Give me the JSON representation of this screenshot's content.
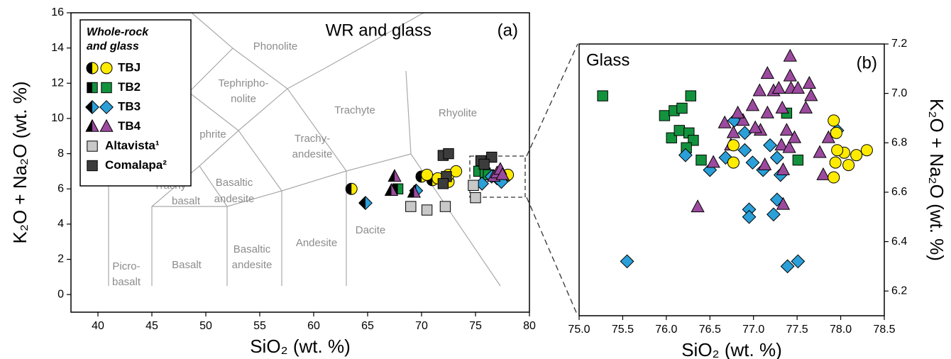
{
  "chart_data": [
    {
      "type": "scatter",
      "title": "WR and glass",
      "panel_label": "(a)",
      "x_label": "SiO₂ (wt. %)",
      "y_label": "K₂O + Na₂O (wt. %)",
      "xlim": [
        37.5,
        80
      ],
      "ylim": [
        -1,
        16
      ],
      "xticks": [
        40,
        45,
        50,
        55,
        60,
        65,
        70,
        75,
        80
      ],
      "yticks": [
        0,
        2,
        4,
        6,
        8,
        10,
        12,
        14,
        16
      ],
      "legend_title": [
        "Whole-rock",
        "and glass"
      ],
      "annotations": [
        "Phonolite",
        "Tephripho-",
        "nolite",
        "phrite",
        "Trachyte",
        "Rhyolite",
        "Trachy-",
        "andesite",
        "Basaltic",
        "andesite",
        "Trachy-",
        "basalt",
        "Picro-",
        "basalt",
        "Basalt",
        "Basaltic",
        "andesite",
        "Andesite",
        "Dacite"
      ],
      "series": [
        {
          "name": "TBJ",
          "color": "#ffeb00",
          "marker": "circle",
          "whole_rock": {
            "x": [
              63.5,
              70.0,
              71.0,
              72.5
            ],
            "y": [
              6.0,
              6.7,
              6.5,
              6.4
            ]
          },
          "glass": {
            "x": [
              70.5,
              71.5,
              72.5,
              73.2,
              77.3,
              77.8,
              78.0
            ],
            "y": [
              6.8,
              6.6,
              6.8,
              7.0,
              6.8,
              6.7,
              6.8
            ]
          }
        },
        {
          "name": "TB2",
          "color": "#13923e",
          "marker": "square",
          "whole_rock": {
            "x": [
              67.8
            ],
            "y": [
              6.0
            ]
          },
          "glass": {
            "x": [
              75.3,
              75.9,
              76.2
            ],
            "y": [
              7.0,
              6.9,
              6.8
            ]
          }
        },
        {
          "name": "TB3",
          "color": "#2a9fd8",
          "marker": "diamond",
          "whole_rock": {
            "x": [
              64.8,
              69.5
            ],
            "y": [
              5.2,
              5.9
            ]
          },
          "glass": {
            "x": [
              75.6,
              76.5,
              77.0,
              77.4
            ],
            "y": [
              6.3,
              6.7,
              6.6,
              6.4
            ]
          }
        },
        {
          "name": "TB4",
          "color": "#9b4a9e",
          "marker": "triangle",
          "whole_rock": {
            "x": [
              67.2,
              67.5,
              69.3
            ],
            "y": [
              5.9,
              6.7,
              5.8
            ]
          },
          "glass": {
            "x": [
              76.7,
              77.0,
              77.3,
              77.5
            ],
            "y": [
              6.7,
              6.9,
              7.1,
              6.8
            ]
          }
        },
        {
          "name": "Altavista¹",
          "color": "#c8c8c8",
          "marker": "square",
          "x": [
            69.0,
            70.5,
            72.2,
            74.8,
            75.0
          ],
          "y": [
            5.0,
            4.8,
            5.0,
            6.2,
            5.5
          ]
        },
        {
          "name": "Comalapa²",
          "color": "#3c3c3c",
          "marker": "square",
          "x": [
            72.0,
            72.5,
            72.3,
            75.5,
            76.5,
            75.8,
            72.0
          ],
          "y": [
            7.9,
            8.0,
            6.7,
            7.6,
            7.8,
            7.4,
            6.3
          ]
        }
      ]
    },
    {
      "type": "scatter",
      "title": "Glass",
      "panel_label": "(b)",
      "x_label": "SiO₂ (wt. %)",
      "y_label": "K₂O + Na₂O (wt. %)",
      "xlim": [
        75,
        78.5
      ],
      "ylim": [
        6.1,
        7.2
      ],
      "xticks": [
        {
          "value": 75,
          "label": "75.0"
        },
        75.5,
        {
          "value": 76,
          "label": "76.0"
        },
        76.5,
        {
          "value": 77,
          "label": "77.0"
        },
        77.5,
        {
          "value": 78,
          "label": "78.0"
        },
        78.5
      ],
      "yticks": [
        6.2,
        6.4,
        6.6,
        6.8,
        {
          "value": 7,
          "label": "7.0"
        },
        7.2
      ],
      "series": [
        {
          "color": "#13923e",
          "marker": "square",
          "x": [
            75.27,
            75.98,
            76.09,
            76.18,
            76.28,
            76.06,
            76.15,
            76.26,
            76.31,
            76.23,
            76.4,
            77.38,
            77.51
          ],
          "y": [
            6.99,
            6.91,
            6.93,
            6.94,
            6.99,
            6.82,
            6.85,
            6.84,
            6.81,
            6.78,
            6.73,
            6.92,
            6.73
          ]
        },
        {
          "color": "#2a9fd8",
          "marker": "diamond",
          "x": [
            75.55,
            76.22,
            76.5,
            76.68,
            76.9,
            76.99,
            77.11,
            77.19,
            77.27,
            77.31,
            76.78,
            76.9,
            76.95,
            76.95,
            77.23,
            77.27,
            77.39,
            77.51,
            77.96
          ],
          "y": [
            6.32,
            6.75,
            6.69,
            6.74,
            6.77,
            6.72,
            6.69,
            6.79,
            6.74,
            6.67,
            6.89,
            6.84,
            6.53,
            6.5,
            6.51,
            6.57,
            6.3,
            6.32,
            6.85
          ]
        },
        {
          "color": "#9b4a9e",
          "marker": "triangle",
          "x": [
            76.67,
            76.54,
            76.77,
            76.88,
            76.82,
            76.99,
            77.07,
            77.16,
            77.23,
            77.29,
            77.33,
            77.43,
            77.51,
            77.64,
            77.66,
            77.6,
            77.42,
            77.42,
            77.38,
            77.32,
            77.41,
            77.47,
            77.16,
            77.08,
            77.13,
            77.34,
            77.34,
            77.76,
            77.86,
            77.8,
            77.02,
            76.36,
            76.74
          ],
          "y": [
            6.88,
            6.72,
            6.84,
            6.89,
            6.92,
            6.95,
            7.01,
            7.08,
            7.01,
            7.02,
            6.94,
            7.02,
            7.02,
            7.04,
            6.99,
            6.94,
            7.07,
            7.15,
            6.85,
            6.79,
            6.78,
            6.82,
            6.92,
            6.85,
            6.71,
            6.69,
            6.55,
            6.76,
            6.82,
            6.67,
            6.86,
            6.54,
            6.79
          ]
        },
        {
          "color": "#ffeb00",
          "marker": "circle",
          "x": [
            76.77,
            76.77,
            77.92,
            77.95,
            78.04,
            78.18,
            78.3,
            77.92,
            77.96,
            78.09,
            77.94
          ],
          "y": [
            6.79,
            6.72,
            6.89,
            6.84,
            6.76,
            6.75,
            6.77,
            6.66,
            6.77,
            6.71,
            6.72
          ]
        }
      ]
    }
  ]
}
